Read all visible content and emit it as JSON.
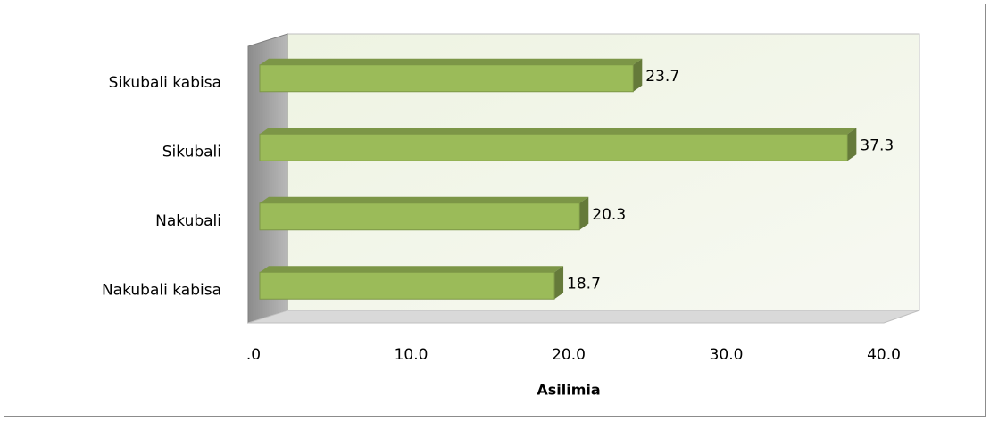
{
  "chart_data": {
    "type": "bar3d_horizontal",
    "categories": [
      "Sikubali kabisa",
      "Sikubali",
      "Nakubali",
      "Nakubali kabisa"
    ],
    "values": [
      23.7,
      37.3,
      20.3,
      18.7
    ],
    "color": "#9bbb59",
    "xlabel": "Asilimia",
    "xlim": [
      0,
      40
    ],
    "xticks": [
      {
        "value": 0,
        "label": ".0"
      },
      {
        "value": 10,
        "label": "10.0"
      },
      {
        "value": 20,
        "label": "20.0"
      },
      {
        "value": 30,
        "label": "30.0"
      },
      {
        "value": 40,
        "label": "40.0"
      }
    ]
  }
}
